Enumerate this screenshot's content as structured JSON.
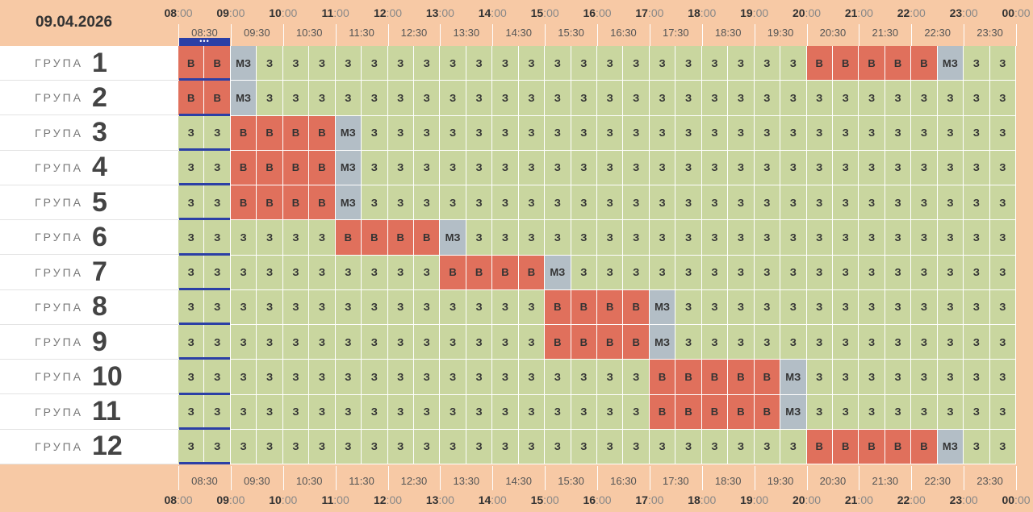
{
  "date": "09.04.2026",
  "hours": [
    "08",
    "09",
    "10",
    "11",
    "12",
    "13",
    "14",
    "15",
    "16",
    "17",
    "18",
    "19",
    "20",
    "21",
    "22",
    "23",
    "00"
  ],
  "hour_suffix": ":00",
  "half_labels": [
    "08:30",
    "09:30",
    "10:30",
    "11:30",
    "12:30",
    "13:30",
    "14:30",
    "15:30",
    "16:30",
    "17:30",
    "18:30",
    "19:30",
    "20:30",
    "21:30",
    "22:30",
    "23:30"
  ],
  "current_marker": "•••",
  "group_label": "ГРУПА",
  "cell_text": {
    "3": "З",
    "B": "В",
    "M": "МЗ"
  },
  "colors": {
    "З": "#c9d69f",
    "В": "#e0705c",
    "МЗ": "#b3bec6",
    "header": "#f7c9a5",
    "current": "#2b3fa6"
  },
  "groups": [
    {
      "number": "1",
      "cells": [
        "B",
        "B",
        "M",
        "3",
        "3",
        "3",
        "3",
        "3",
        "3",
        "3",
        "3",
        "3",
        "3",
        "3",
        "3",
        "3",
        "3",
        "3",
        "3",
        "3",
        "3",
        "3",
        "3",
        "3",
        "B",
        "B",
        "B",
        "B",
        "B",
        "M",
        "3",
        "3"
      ]
    },
    {
      "number": "2",
      "cells": [
        "B",
        "B",
        "M",
        "3",
        "3",
        "3",
        "3",
        "3",
        "3",
        "3",
        "3",
        "3",
        "3",
        "3",
        "3",
        "3",
        "3",
        "3",
        "3",
        "3",
        "3",
        "3",
        "3",
        "3",
        "3",
        "3",
        "3",
        "3",
        "3",
        "3",
        "3",
        "3"
      ]
    },
    {
      "number": "3",
      "cells": [
        "3",
        "3",
        "B",
        "B",
        "B",
        "B",
        "M",
        "3",
        "3",
        "3",
        "3",
        "3",
        "3",
        "3",
        "3",
        "3",
        "3",
        "3",
        "3",
        "3",
        "3",
        "3",
        "3",
        "3",
        "3",
        "3",
        "3",
        "3",
        "3",
        "3",
        "3",
        "3"
      ]
    },
    {
      "number": "4",
      "cells": [
        "3",
        "3",
        "B",
        "B",
        "B",
        "B",
        "M",
        "3",
        "3",
        "3",
        "3",
        "3",
        "3",
        "3",
        "3",
        "3",
        "3",
        "3",
        "3",
        "3",
        "3",
        "3",
        "3",
        "3",
        "3",
        "3",
        "3",
        "3",
        "3",
        "3",
        "3",
        "3"
      ]
    },
    {
      "number": "5",
      "cells": [
        "3",
        "3",
        "B",
        "B",
        "B",
        "B",
        "M",
        "3",
        "3",
        "3",
        "3",
        "3",
        "3",
        "3",
        "3",
        "3",
        "3",
        "3",
        "3",
        "3",
        "3",
        "3",
        "3",
        "3",
        "3",
        "3",
        "3",
        "3",
        "3",
        "3",
        "3",
        "3"
      ]
    },
    {
      "number": "6",
      "cells": [
        "3",
        "3",
        "3",
        "3",
        "3",
        "3",
        "B",
        "B",
        "B",
        "B",
        "M",
        "3",
        "3",
        "3",
        "3",
        "3",
        "3",
        "3",
        "3",
        "3",
        "3",
        "3",
        "3",
        "3",
        "3",
        "3",
        "3",
        "3",
        "3",
        "3",
        "3",
        "3"
      ]
    },
    {
      "number": "7",
      "cells": [
        "3",
        "3",
        "3",
        "3",
        "3",
        "3",
        "3",
        "3",
        "3",
        "3",
        "B",
        "B",
        "B",
        "B",
        "M",
        "3",
        "3",
        "3",
        "3",
        "3",
        "3",
        "3",
        "3",
        "3",
        "3",
        "3",
        "3",
        "3",
        "3",
        "3",
        "3",
        "3"
      ]
    },
    {
      "number": "8",
      "cells": [
        "3",
        "3",
        "3",
        "3",
        "3",
        "3",
        "3",
        "3",
        "3",
        "3",
        "3",
        "3",
        "3",
        "3",
        "B",
        "B",
        "B",
        "B",
        "M",
        "3",
        "3",
        "3",
        "3",
        "3",
        "3",
        "3",
        "3",
        "3",
        "3",
        "3",
        "3",
        "3"
      ]
    },
    {
      "number": "9",
      "cells": [
        "3",
        "3",
        "3",
        "3",
        "3",
        "3",
        "3",
        "3",
        "3",
        "3",
        "3",
        "3",
        "3",
        "3",
        "B",
        "B",
        "B",
        "B",
        "M",
        "3",
        "3",
        "3",
        "3",
        "3",
        "3",
        "3",
        "3",
        "3",
        "3",
        "3",
        "3",
        "3"
      ]
    },
    {
      "number": "10",
      "cells": [
        "3",
        "3",
        "3",
        "3",
        "3",
        "3",
        "3",
        "3",
        "3",
        "3",
        "3",
        "3",
        "3",
        "3",
        "3",
        "3",
        "3",
        "3",
        "B",
        "B",
        "B",
        "B",
        "B",
        "M",
        "3",
        "3",
        "3",
        "3",
        "3",
        "3",
        "3",
        "3"
      ]
    },
    {
      "number": "11",
      "cells": [
        "3",
        "3",
        "3",
        "3",
        "3",
        "3",
        "3",
        "3",
        "3",
        "3",
        "3",
        "3",
        "3",
        "3",
        "3",
        "3",
        "3",
        "3",
        "B",
        "B",
        "B",
        "B",
        "B",
        "M",
        "3",
        "3",
        "3",
        "3",
        "3",
        "3",
        "3",
        "3"
      ]
    },
    {
      "number": "12",
      "cells": [
        "3",
        "3",
        "3",
        "3",
        "3",
        "3",
        "3",
        "3",
        "3",
        "3",
        "3",
        "3",
        "3",
        "3",
        "3",
        "3",
        "3",
        "3",
        "3",
        "3",
        "3",
        "3",
        "3",
        "3",
        "B",
        "B",
        "B",
        "B",
        "B",
        "M",
        "3",
        "3"
      ]
    }
  ]
}
